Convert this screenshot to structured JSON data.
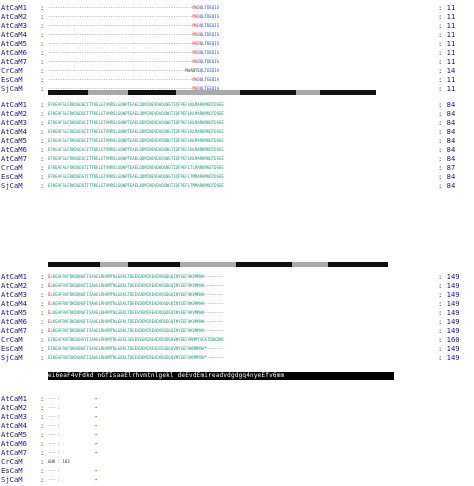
{
  "blocks": [
    {
      "id": "block1",
      "topology": [],
      "rows": [
        {
          "name": "AtCaM1",
          "sep": ":",
          "seq": [
            {
              "t": "------------------------------------------------------------",
              "c": "k"
            },
            {
              "t": "MAD",
              "c": "r"
            },
            {
              "t": "QLTDEQIS",
              "c": "b"
            }
          ],
          "end": ": 11"
        },
        {
          "name": "AtCaM2",
          "sep": ":",
          "seq": [
            {
              "t": "------------------------------------------------------------",
              "c": "k"
            },
            {
              "t": "MAD",
              "c": "r"
            },
            {
              "t": "QLTDEQIS",
              "c": "b"
            }
          ],
          "end": ": 11"
        },
        {
          "name": "AtCaM3",
          "sep": ":",
          "seq": [
            {
              "t": "------------------------------------------------------------",
              "c": "k"
            },
            {
              "t": "MAD",
              "c": "r"
            },
            {
              "t": "QLTDEQIS",
              "c": "b"
            }
          ],
          "end": ": 11"
        },
        {
          "name": "AtCaM4",
          "sep": ":",
          "seq": [
            {
              "t": "------------------------------------------------------------",
              "c": "k"
            },
            {
              "t": "MAD",
              "c": "r"
            },
            {
              "t": "QLTDEQIS",
              "c": "b"
            }
          ],
          "end": ": 11"
        },
        {
          "name": "AtCaM5",
          "sep": ":",
          "seq": [
            {
              "t": "------------------------------------------------------------",
              "c": "k"
            },
            {
              "t": "MAD",
              "c": "r"
            },
            {
              "t": "QLTDEQIS",
              "c": "b"
            }
          ],
          "end": ": 11"
        },
        {
          "name": "AtCaM6",
          "sep": ":",
          "seq": [
            {
              "t": "------------------------------------------------------------",
              "c": "k"
            },
            {
              "t": "MAD",
              "c": "r"
            },
            {
              "t": "QLTDEQIS",
              "c": "b"
            }
          ],
          "end": ": 11"
        },
        {
          "name": "AtCaM7",
          "sep": ":",
          "seq": [
            {
              "t": "------------------------------------------------------------",
              "c": "k"
            },
            {
              "t": "MAD",
              "c": "r"
            },
            {
              "t": "QLTDEQIS",
              "c": "b"
            }
          ],
          "end": ": 11"
        },
        {
          "name": "CrCaM",
          "sep": ":",
          "seq": [
            {
              "t": "---------------------------------------------------------",
              "c": "k"
            },
            {
              "t": "MAANTE",
              "c": "k"
            },
            {
              "t": "QLTEEQIA",
              "c": "b"
            }
          ],
          "end": ": 14"
        },
        {
          "name": "EsCaM",
          "sep": ":",
          "seq": [
            {
              "t": "------------------------------------------------------------",
              "c": "k"
            },
            {
              "t": "MAD",
              "c": "r"
            },
            {
              "t": "QLTEEQIA",
              "c": "b"
            }
          ],
          "end": ": 11"
        },
        {
          "name": "SjCaM",
          "sep": ":",
          "seq": [
            {
              "t": "------------------------------------------------------------",
              "c": "k"
            },
            {
              "t": "MAD",
              "c": "r"
            },
            {
              "t": "QLTEEQIA",
              "c": "b"
            }
          ],
          "end": ": 11"
        }
      ]
    },
    {
      "id": "block2",
      "topology": [],
      "rows": [
        {
          "name": "AtCaM1",
          "sep": ":",
          "seq": [
            {
              "t": "EFKEAFSLFDKDGDGCITTKELGTVMRSLGQNPTEAEL",
              "c": "g"
            },
            {
              "t": "QDMINEVDADGNGTIDFPEFLNLMARKMKDTDSEE",
              "c": "g"
            }
          ],
          "end": ": 84"
        },
        {
          "name": "AtCaM2",
          "sep": ":",
          "seq": [
            {
              "t": "EFKEAFSLFDKDGDGCITTKELGTVMRSLGQNPTEAEL",
              "c": "g"
            },
            {
              "t": "QDMINEVDADGNGTIDFPEFLNLMARKMKDTDSEE",
              "c": "g"
            }
          ],
          "end": ": 84"
        },
        {
          "name": "AtCaM3",
          "sep": ":",
          "seq": [
            {
              "t": "EFKEAFSLFDKDGDGCITTKELGTVMRSLGQNPTEAEL",
              "c": "g"
            },
            {
              "t": "QDMINEVDADGNGTIDFPEFLNLMARKMKDTDSEE",
              "c": "g"
            }
          ],
          "end": ": 84"
        },
        {
          "name": "AtCaM4",
          "sep": ":",
          "seq": [
            {
              "t": "EFKEAFSLFDKDGDGCITTKELGTVMRSLGQNPTEAEL",
              "c": "g"
            },
            {
              "t": "QDMINEVDADGNGTIDFPEFLNLMARKMKDTDSEE",
              "c": "g"
            }
          ],
          "end": ": 84"
        },
        {
          "name": "AtCaM5",
          "sep": ":",
          "seq": [
            {
              "t": "EFKEAFSLFDKDGDGCITTKELGTVMRSLGQNPTEAEL",
              "c": "g"
            },
            {
              "t": "QDMINEVDADGNGTIDFPEFLNLMARKMKDTDSEE",
              "c": "g"
            }
          ],
          "end": ": 84"
        },
        {
          "name": "AtCaM6",
          "sep": ":",
          "seq": [
            {
              "t": "EFKEAFSLFDKDGDGCITTKELGTVMRSLGQNPTEAEL",
              "c": "g"
            },
            {
              "t": "QDMINEVDADGNGTIDFPEFLNLMARKMKDTDSEE",
              "c": "g"
            }
          ],
          "end": ": 84"
        },
        {
          "name": "AtCaM7",
          "sep": ":",
          "seq": [
            {
              "t": "EFKEAFSLFDKDGDGCITTKELGTVMRSLGQNPTEAEL",
              "c": "g"
            },
            {
              "t": "QDMINEVDADGNGTIDFPEFLNLMARKMKDTDSEE",
              "c": "g"
            }
          ],
          "end": ": 84"
        },
        {
          "name": "CrCaM",
          "sep": ":",
          "seq": [
            {
              "t": "EFKEAFALFDKDGDGTITTKELGTVMRSLGQNPTEAEL",
              "c": "g"
            },
            {
              "t": "QDMINEVDADGNGTIDFPEFLTLMARKMKETDSEE",
              "c": "g"
            }
          ],
          "end": ": 87"
        },
        {
          "name": "EsCaM",
          "sep": ":",
          "seq": [
            {
              "t": "EFKEAFSLFDKDGDGTITTKELGTVMRSLGQNPTEAEL",
              "c": "g"
            },
            {
              "t": "QDMINEVDADGNGTIDFPEFLTMMARKMKDTDSEE",
              "c": "g"
            }
          ],
          "end": ": 84"
        },
        {
          "name": "SjCaM",
          "sep": ":",
          "seq": [
            {
              "t": "EFKEAFSLFDKDGDGTITTKELGTVMRSLGQNPTEAEL",
              "c": "g"
            },
            {
              "t": "ADMINEVDADGNGTIDFPEFLTMMARKMKDTDSEE",
              "c": "g"
            }
          ],
          "end": ": 84"
        }
      ]
    },
    {
      "id": "block3",
      "topology": [],
      "rows": [
        {
          "name": "AtCaM1",
          "sep": ":",
          "seq": [
            {
              "t": "E",
              "c": "r"
            },
            {
              "t": "LKEAFRVFDKDQNGFISAAELRHVMTNLGEKLTDEEVDEMIREADVDGDGQINYEEFVKVMMAK",
              "c": "g"
            },
            {
              "t": "--------",
              "c": "k"
            }
          ],
          "end": ": 149"
        },
        {
          "name": "AtCaM2",
          "sep": ":",
          "seq": [
            {
              "t": "E",
              "c": "r"
            },
            {
              "t": "LKEAFRVFDKDQNGFISAAELRHVMTNLGEKLTDEEVDEMIREADVDGDGQINYEEFVKVMMAK",
              "c": "g"
            },
            {
              "t": "--------",
              "c": "k"
            }
          ],
          "end": ": 149"
        },
        {
          "name": "AtCaM3",
          "sep": ":",
          "seq": [
            {
              "t": "E",
              "c": "r"
            },
            {
              "t": "LKEAFRVFDKDQNGFISAAELRHVMTNLGEKLTDEEVDEMIREADVDGDGQINYEEFVKVMMAK",
              "c": "g"
            },
            {
              "t": "--------",
              "c": "k"
            }
          ],
          "end": ": 149"
        },
        {
          "name": "AtCaM4",
          "sep": ":",
          "seq": [
            {
              "t": "E",
              "c": "r"
            },
            {
              "t": "LKEAFRVFDKDQNGFISAAELRHVMTNLGEKLTDEEVDEMIREADVDGDGQINYEEFVKVMMAK",
              "c": "g"
            },
            {
              "t": "--------",
              "c": "k"
            }
          ],
          "end": ": 149"
        },
        {
          "name": "AtCaM5",
          "sep": ":",
          "seq": [
            {
              "t": "E",
              "c": "r"
            },
            {
              "t": "LKEAFRVFDKDQNGFISAAELRHVMTNLGEKLTDEEVDEMIREADVDGDGQINYEEFVKVMMAK",
              "c": "g"
            },
            {
              "t": "--------",
              "c": "k"
            }
          ],
          "end": ": 149"
        },
        {
          "name": "AtCaM6",
          "sep": ":",
          "seq": [
            {
              "t": "E",
              "c": "r"
            },
            {
              "t": "LKEAFRVFDKDQNGFISAAELRHVMTNLGEKLTDEEVDEMIREADVDGDGQINYEEFVKVMMAK",
              "c": "g"
            },
            {
              "t": "--------",
              "c": "k"
            }
          ],
          "end": ": 149"
        },
        {
          "name": "AtCaM7",
          "sep": ":",
          "seq": [
            {
              "t": "E",
              "c": "r"
            },
            {
              "t": "LKEAFRVFDKDQNGFISAAELRHVMTNLGEKLTDEEVDEMIREADVDGDGQINYEEFVKVMMAK",
              "c": "g"
            },
            {
              "t": "--------",
              "c": "k"
            }
          ],
          "end": ": 149"
        },
        {
          "name": "CrCaM",
          "sep": ":",
          "seq": [
            {
              "t": "EIKEAFKVFDKDGNGYISAAELRHVMTNLGEKLSEEEVEEMIREADVDGDGQVNYEEFVRMMTSGATDDKDKK",
              "c": "g"
            }
          ],
          "end": ": 160"
        },
        {
          "name": "EsCaM",
          "sep": ":",
          "seq": [
            {
              "t": "EIKEAFRVFDKDGNGFISAAELRHVMTNLGEKLTDEEVDEMIREADIDGDGQVNYEEFVKMMMSK",
              "c": "g"
            },
            {
              "t": "*-------",
              "c": "k"
            }
          ],
          "end": ": 149"
        },
        {
          "name": "SjCaM",
          "sep": ":",
          "seq": [
            {
              "t": "EIKEAFRVFDKDGNGFISAAELRHVMTNLGEKLTDEEVDEMIREADVDGDGQVNYEEFVKMMMSK",
              "c": "g"
            },
            {
              "t": "*-------",
              "c": "k"
            }
          ],
          "end": ": 149"
        }
      ],
      "consensus": "ei6eaF4vFdkd nGfIsaaElrhvmtnlgekl deEvdEmireadvdgdgq4nyeEfv6mm"
    },
    {
      "id": "block4",
      "topology": [],
      "rows": [
        {
          "name": "AtCaM1",
          "sep": ":",
          "seq": [
            {
              "t": "--- :",
              "c": "k"
            }
          ],
          "end": "-"
        },
        {
          "name": "AtCaM2",
          "sep": ":",
          "seq": [
            {
              "t": "--- :",
              "c": "k"
            }
          ],
          "end": "-"
        },
        {
          "name": "AtCaM3",
          "sep": ":",
          "seq": [
            {
              "t": "--- :",
              "c": "k"
            }
          ],
          "end": "-"
        },
        {
          "name": "AtCaM4",
          "sep": ":",
          "seq": [
            {
              "t": "--- :",
              "c": "k"
            }
          ],
          "end": "-"
        },
        {
          "name": "AtCaM5",
          "sep": ":",
          "seq": [
            {
              "t": "--- :",
              "c": "k"
            }
          ],
          "end": "-"
        },
        {
          "name": "AtCaM6",
          "sep": ":",
          "seq": [
            {
              "t": "--- :",
              "c": "k"
            }
          ],
          "end": "-"
        },
        {
          "name": "AtCaM7",
          "sep": ":",
          "seq": [
            {
              "t": "--- :",
              "c": "k"
            }
          ],
          "end": "-"
        },
        {
          "name": "CrCaM",
          "sep": ":",
          "seq": [
            {
              "t": "GHK : 163",
              "c": "k"
            }
          ],
          "end": ""
        },
        {
          "name": "EsCaM",
          "sep": ":",
          "seq": [
            {
              "t": "--- :",
              "c": "k"
            }
          ],
          "end": "-"
        },
        {
          "name": "SjCaM",
          "sep": ":",
          "seq": [
            {
              "t": "--- :",
              "c": "k"
            }
          ],
          "end": "-"
        }
      ]
    }
  ],
  "colors": {
    "g": "#1f9a74",
    "r": "#d82a2a",
    "b": "#2b4fd0",
    "k": "#333333",
    "helix": "#111111",
    "loop": "#a9a9a9"
  }
}
